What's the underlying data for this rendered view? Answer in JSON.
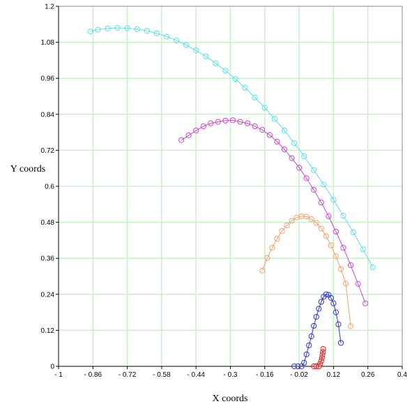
{
  "chart_data": {
    "type": "scatter",
    "title": "",
    "xlabel": "X coords",
    "ylabel": "Y coords",
    "xlim": [
      -1,
      0.4
    ],
    "ylim": [
      0,
      1.2
    ],
    "grid": true,
    "x_ticks": [
      "- 1",
      "- 0.86",
      "- 0.72",
      "- 0.58",
      "- 0.44",
      "- 0.3",
      "- 0.16",
      "- 0.02",
      "0.12",
      "0.26",
      "0.4"
    ],
    "x_tick_values": [
      -1,
      -0.86,
      -0.72,
      -0.58,
      -0.44,
      -0.3,
      -0.16,
      -0.02,
      0.12,
      0.26,
      0.4
    ],
    "y_ticks": [
      "0",
      "0.12",
      "0.24",
      "0.36",
      "0.48",
      "0.6",
      "0.72",
      "0.84",
      "0.96",
      "1.08",
      "1.2"
    ],
    "y_tick_values": [
      0,
      0.12,
      0.24,
      0.36,
      0.48,
      0.6,
      0.72,
      0.84,
      0.96,
      1.08,
      1.2
    ],
    "colors": {
      "grid": "#c8f0c8",
      "axis": "#000000",
      "series": [
        "#55e0e8",
        "#cc44cc",
        "#f0a070",
        "#3333cc",
        "#e02020"
      ]
    },
    "series": [
      {
        "name": "",
        "color": "#55e0e8",
        "x": [
          -0.87,
          -0.84,
          -0.8,
          -0.76,
          -0.72,
          -0.68,
          -0.64,
          -0.6,
          -0.56,
          -0.52,
          -0.48,
          -0.44,
          -0.4,
          -0.36,
          -0.32,
          -0.28,
          -0.24,
          -0.2,
          -0.16,
          -0.12,
          -0.08,
          -0.04,
          0.0,
          0.04,
          0.08,
          0.12,
          0.16,
          0.2,
          0.24,
          0.28
        ],
        "y": [
          1.116,
          1.122,
          1.126,
          1.128,
          1.127,
          1.124,
          1.118,
          1.11,
          1.099,
          1.086,
          1.071,
          1.053,
          1.033,
          1.01,
          0.985,
          0.958,
          0.928,
          0.896,
          0.862,
          0.825,
          0.786,
          0.744,
          0.7,
          0.654,
          0.606,
          0.555,
          0.502,
          0.447,
          0.39,
          0.33
        ]
      },
      {
        "name": "",
        "color": "#cc44cc",
        "x": [
          -0.5,
          -0.47,
          -0.44,
          -0.41,
          -0.38,
          -0.35,
          -0.32,
          -0.29,
          -0.26,
          -0.23,
          -0.2,
          -0.17,
          -0.14,
          -0.11,
          -0.08,
          -0.05,
          -0.02,
          0.01,
          0.04,
          0.07,
          0.1,
          0.13,
          0.16,
          0.19,
          0.22,
          0.25
        ],
        "y": [
          0.754,
          0.77,
          0.786,
          0.8,
          0.81,
          0.815,
          0.819,
          0.82,
          0.815,
          0.81,
          0.8,
          0.788,
          0.771,
          0.749,
          0.723,
          0.694,
          0.662,
          0.627,
          0.588,
          0.546,
          0.5,
          0.449,
          0.395,
          0.337,
          0.275,
          0.21
        ]
      },
      {
        "name": "",
        "color": "#f0a070",
        "x": [
          -0.17,
          -0.15,
          -0.13,
          -0.11,
          -0.09,
          -0.07,
          -0.05,
          -0.03,
          -0.01,
          0.01,
          0.03,
          0.05,
          0.07,
          0.09,
          0.11,
          0.13,
          0.15,
          0.17,
          0.19
        ],
        "y": [
          0.319,
          0.361,
          0.395,
          0.425,
          0.451,
          0.47,
          0.485,
          0.496,
          0.5,
          0.499,
          0.491,
          0.478,
          0.459,
          0.434,
          0.403,
          0.367,
          0.324,
          0.276,
          0.134
        ]
      },
      {
        "name": "",
        "color": "#3333cc",
        "x": [
          -0.04,
          -0.025,
          -0.01,
          0.0,
          0.01,
          0.02,
          0.03,
          0.04,
          0.05,
          0.06,
          0.07,
          0.08,
          0.09,
          0.1,
          0.11,
          0.12,
          0.13,
          0.14,
          0.15
        ],
        "y": [
          0.0,
          0.0,
          0.0,
          0.012,
          0.04,
          0.07,
          0.1,
          0.135,
          0.165,
          0.192,
          0.215,
          0.232,
          0.24,
          0.238,
          0.228,
          0.21,
          0.18,
          0.14,
          0.078
        ]
      },
      {
        "name": "",
        "color": "#e02020",
        "x": [
          0.04,
          0.05,
          0.06,
          0.065,
          0.07,
          0.073,
          0.075,
          0.077,
          0.078
        ],
        "y": [
          0.0,
          0.0,
          0.0,
          0.008,
          0.018,
          0.028,
          0.038,
          0.048,
          0.058
        ]
      }
    ]
  }
}
